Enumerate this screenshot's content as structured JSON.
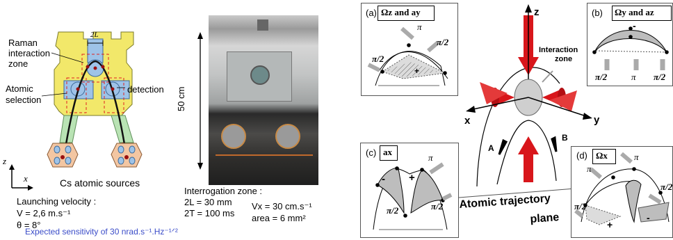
{
  "left_panel": {
    "raman_label_lines": [
      "Raman",
      "interaction",
      "zone"
    ],
    "dimension_2L": "2L",
    "atomic_selection_lines": [
      "Atomic",
      "selection"
    ],
    "detection": "detection",
    "axis_z": "z",
    "axis_x": "x",
    "cs_sources": "Cs atomic sources",
    "launching_velocity_label": "Launching velocity :",
    "velocity_value": "V = 2,6 m.s⁻¹",
    "theta_value": "θ = 8°",
    "height_label": "50 cm",
    "interrogation_title": "Interrogation zone :",
    "interrogation_2L": "2L = 30 mm",
    "interrogation_2T": "2T = 100 ms",
    "vx_value": "Vx = 30 cm.s⁻¹",
    "area_value": "area = 6 mm²",
    "sensitivity": "Expected sensitivity of 30 nrad.s⁻¹.Hz⁻¹ᐟ²",
    "colors": {
      "sensitivity_text": "#3a4cc8",
      "frame_yellow": "#f2e86a",
      "beam_green": "#b9e3b4",
      "source_orange": "#f3c6a2"
    }
  },
  "right_panel": {
    "center_axes": {
      "z": "z",
      "x": "x",
      "y": "y"
    },
    "interaction_zone_lines": [
      "Interaction",
      "zone"
    ],
    "beam_labels": {
      "A": "A",
      "B": "B"
    },
    "trajectory_plane_lines": [
      "Atomic trajectory",
      "plane"
    ],
    "box_a": {
      "tag": "(a)",
      "title": "Ωz and ay",
      "pi": "π",
      "pi2_left": "π/2",
      "pi2_right": "π/2",
      "sign": "+"
    },
    "box_b": {
      "tag": "(b)",
      "title": "Ωy and az",
      "pi": "π",
      "pi2_left": "π/2",
      "pi2_right": "π/2",
      "sign": "-"
    },
    "box_c": {
      "tag": "(c)",
      "title": "ax",
      "pi": "π",
      "pi2_left": "π/2",
      "pi2_right": "π/2",
      "sign_minus": "-",
      "sign_plus": "+"
    },
    "box_d": {
      "tag": "(d)",
      "title": "Ωx",
      "pi_left": "π",
      "pi_right": "π",
      "pi2_left": "π/2",
      "pi2_right": "π/2",
      "sign_plus": "+",
      "sign_minus": "-"
    },
    "colors": {
      "laser_red": "#d8161b",
      "ellipse_gray": "#cfcfcf",
      "area_gray": "#b3b3b3"
    }
  }
}
